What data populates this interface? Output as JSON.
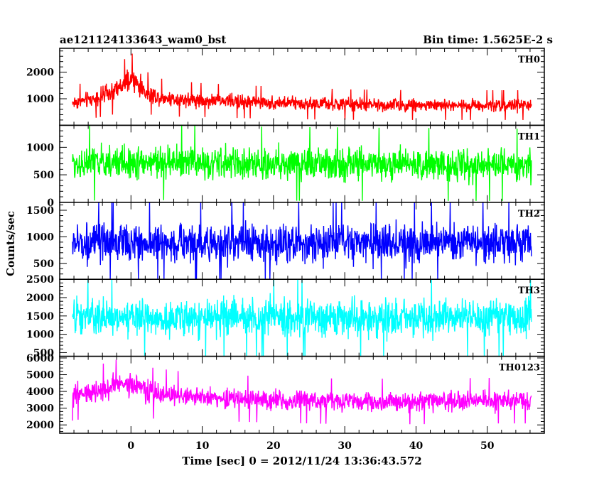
{
  "chart_data": {
    "type": "line",
    "title_left": "ae121124133643_wam0_bst",
    "title_right": "Bin time: 1.5625E-2 s",
    "xlabel": "Time [sec] 0 = 2012/11/24 13:36:43.572",
    "ylabel": "Counts/sec",
    "xlim": [
      -10,
      58
    ],
    "x_ticks": [
      0,
      10,
      20,
      30,
      40,
      50
    ],
    "x_range_data": [
      -8.2,
      56.2
    ],
    "bin_time": 0.015625,
    "panels": [
      {
        "name": "TH0",
        "color": "#ff0000",
        "ylim": [
          0,
          2900
        ],
        "y_ticks": [
          1000,
          2000
        ],
        "envelope": {
          "x": [
            -8.2,
            -5,
            -3,
            -1,
            0,
            1,
            2,
            4,
            6,
            10,
            20,
            30,
            40,
            50,
            56.2
          ],
          "mean": [
            850,
            1000,
            1200,
            1500,
            1700,
            1550,
            1250,
            1050,
            1000,
            950,
            850,
            780,
            760,
            760,
            760
          ],
          "spread": [
            400,
            450,
            520,
            600,
            650,
            600,
            500,
            450,
            420,
            400,
            380,
            360,
            350,
            350,
            350
          ]
        }
      },
      {
        "name": "TH1",
        "color": "#00ff00",
        "ylim": [
          0,
          1400
        ],
        "y_ticks": [
          0,
          500,
          1000
        ],
        "envelope": {
          "x": [
            -8.2,
            0,
            20,
            56.2
          ],
          "mean": [
            700,
            730,
            700,
            680
          ],
          "spread": [
            420,
            430,
            420,
            410
          ]
        }
      },
      {
        "name": "TH2",
        "color": "#0000ff",
        "ylim": [
          200,
          1650
        ],
        "y_ticks": [
          500,
          1000,
          1500
        ],
        "envelope": {
          "x": [
            -8.2,
            56.2
          ],
          "mean": [
            880,
            880
          ],
          "spread": [
            520,
            520
          ]
        }
      },
      {
        "name": "TH3",
        "color": "#00ffff",
        "ylim": [
          400,
          2500
        ],
        "y_ticks": [
          500,
          1000,
          1500,
          2000,
          2500
        ],
        "envelope": {
          "x": [
            -8.2,
            56.2
          ],
          "mean": [
            1450,
            1450
          ],
          "spread": [
            720,
            720
          ]
        }
      },
      {
        "name": "TH0123",
        "color": "#ff00ff",
        "ylim": [
          1500,
          6100
        ],
        "y_ticks": [
          2000,
          3000,
          4000,
          5000,
          6000
        ],
        "envelope": {
          "x": [
            -8.2,
            -5,
            -2,
            0,
            1,
            3,
            8,
            20,
            30,
            40,
            50,
            56.2
          ],
          "mean": [
            3700,
            4000,
            4300,
            4500,
            4300,
            3900,
            3700,
            3500,
            3400,
            3400,
            3450,
            3450
          ],
          "spread": [
            900,
            950,
            1000,
            1050,
            1000,
            950,
            900,
            850,
            850,
            850,
            850,
            850
          ]
        }
      }
    ]
  }
}
